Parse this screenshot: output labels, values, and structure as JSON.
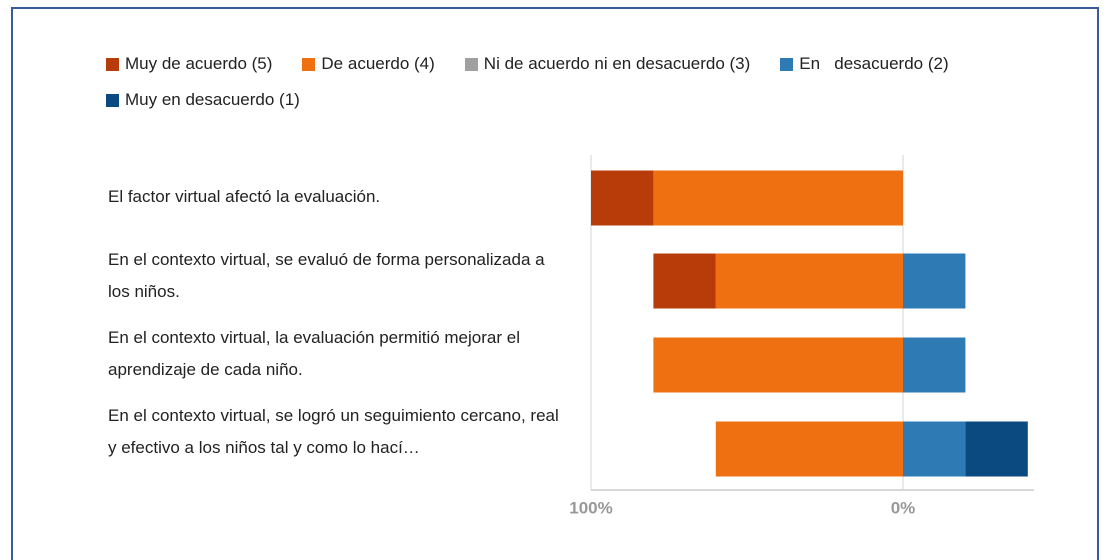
{
  "chart_data": {
    "type": "diverging-stacked-bar",
    "categories": [
      "El factor virtual afectó la evaluación.",
      "En el contexto virtual, se evaluó de forma personalizada a los niños.",
      "En el contexto virtual, la evaluación permitió mejorar el aprendizaje de cada niño.",
      "En el contexto virtual, se logró un seguimiento cercano, real y efectivo a los niños tal y como lo hací…"
    ],
    "series": [
      {
        "name": "Muy de acuerdo (5)",
        "color": "#b83c0a",
        "values": [
          -20,
          -20,
          0,
          0
        ]
      },
      {
        "name": "De acuerdo (4)",
        "color": "#ee7010",
        "values": [
          -80,
          -60,
          -80,
          -60
        ]
      },
      {
        "name": "Ni de acuerdo ni en desacuerdo (3)",
        "color": "#a0a0a0",
        "values": [
          0,
          0,
          0,
          0
        ]
      },
      {
        "name": "En   desacuerdo (2)",
        "color": "#2e7ab4",
        "values": [
          0,
          20,
          20,
          20
        ]
      },
      {
        "name": "Muy en desacuerdo (1)",
        "color": "#0b4a80",
        "values": [
          0,
          0,
          0,
          20
        ]
      }
    ],
    "xlim": [
      -100,
      42
    ],
    "xticks": [
      {
        "value": -100,
        "label": "100%"
      },
      {
        "value": 0,
        "label": "0%"
      }
    ]
  }
}
